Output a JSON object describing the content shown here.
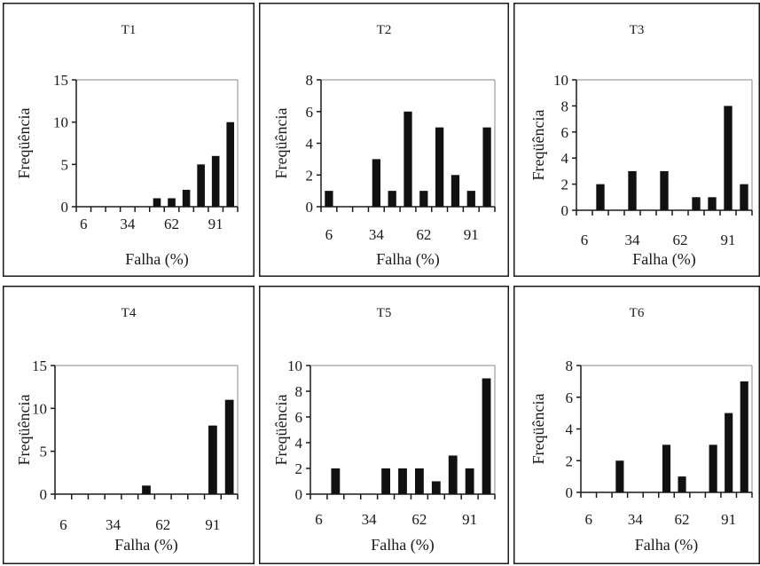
{
  "chart_data": [
    {
      "type": "bar",
      "title": "T1",
      "xlabel": "Falha (%)",
      "ylabel": "Freqüência",
      "ylim": [
        0,
        15
      ],
      "yticks": [
        0,
        5,
        10,
        15
      ],
      "xtick_labels": [
        "6",
        "34",
        "62",
        "91"
      ],
      "values": [
        0,
        0,
        0,
        0,
        0,
        1,
        1,
        2,
        5,
        6,
        10
      ]
    },
    {
      "type": "bar",
      "title": "T2",
      "xlabel": "Falha (%)",
      "ylabel": "Freqüência",
      "ylim": [
        0,
        8
      ],
      "yticks": [
        0,
        2,
        4,
        6,
        8
      ],
      "xtick_labels": [
        "6",
        "34",
        "62",
        "91"
      ],
      "values": [
        1,
        0,
        0,
        3,
        1,
        6,
        1,
        5,
        2,
        1,
        5
      ]
    },
    {
      "type": "bar",
      "title": "T3",
      "xlabel": "Falha (%)",
      "ylabel": "Freqüência",
      "ylim": [
        0,
        10
      ],
      "yticks": [
        0,
        2,
        4,
        6,
        8,
        10
      ],
      "xtick_labels": [
        "6",
        "34",
        "62",
        "91"
      ],
      "values": [
        0,
        2,
        0,
        3,
        0,
        3,
        0,
        1,
        1,
        8,
        2
      ]
    },
    {
      "type": "bar",
      "title": "T4",
      "xlabel": "Falha (%)",
      "ylabel": "Freqüência",
      "ylim": [
        0,
        15
      ],
      "yticks": [
        0,
        5,
        10,
        15
      ],
      "xtick_labels": [
        "6",
        "34",
        "62",
        "91"
      ],
      "values": [
        0,
        0,
        0,
        0,
        0,
        1,
        0,
        0,
        0,
        8,
        11
      ]
    },
    {
      "type": "bar",
      "title": "T5",
      "xlabel": "Falha (%)",
      "ylabel": "Freqüência",
      "ylim": [
        0,
        10
      ],
      "yticks": [
        0,
        2,
        4,
        6,
        8,
        10
      ],
      "xtick_labels": [
        "6",
        "34",
        "62",
        "91"
      ],
      "values": [
        0,
        2,
        0,
        0,
        2,
        2,
        2,
        1,
        3,
        2,
        9
      ]
    },
    {
      "type": "bar",
      "title": "T6",
      "xlabel": "Falha (%)",
      "ylabel": "Freqüência",
      "ylim": [
        0,
        8
      ],
      "yticks": [
        0,
        2,
        4,
        6,
        8
      ],
      "xtick_labels": [
        "6",
        "34",
        "62",
        "91"
      ],
      "values": [
        0,
        0,
        2,
        0,
        0,
        3,
        1,
        0,
        3,
        5,
        7
      ]
    }
  ]
}
